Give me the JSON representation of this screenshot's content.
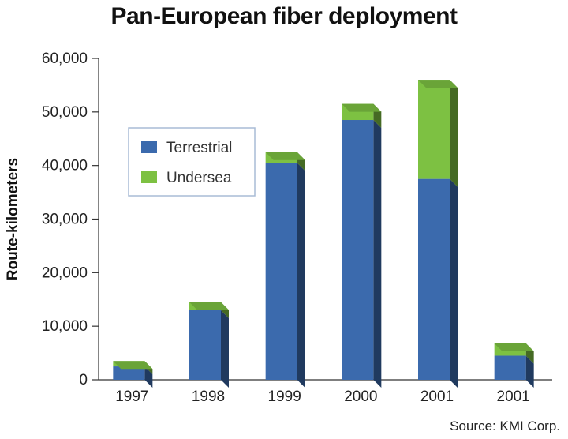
{
  "chart_data": {
    "type": "bar",
    "stacked": true,
    "title": "Pan-European fiber deployment",
    "ylabel": "Route-kilometers",
    "xlabel": "",
    "categories": [
      "1997",
      "1998",
      "1999",
      "2000",
      "2001",
      "2001"
    ],
    "series": [
      {
        "name": "Terrestrial",
        "color": "#3b6aad",
        "values": [
          2500,
          13000,
          40500,
          48500,
          37500,
          4500
        ]
      },
      {
        "name": "Undersea",
        "color": "#7dc142",
        "values": [
          1000,
          1500,
          2000,
          3000,
          18500,
          2300
        ]
      }
    ],
    "ylim": [
      0,
      60000
    ],
    "yticks": [
      "0",
      "10,000",
      "20,000",
      "30,000",
      "40,000",
      "50,000",
      "60,000"
    ],
    "legend_position": "top-left",
    "grid": false,
    "source": "Source: KMI Corp."
  }
}
